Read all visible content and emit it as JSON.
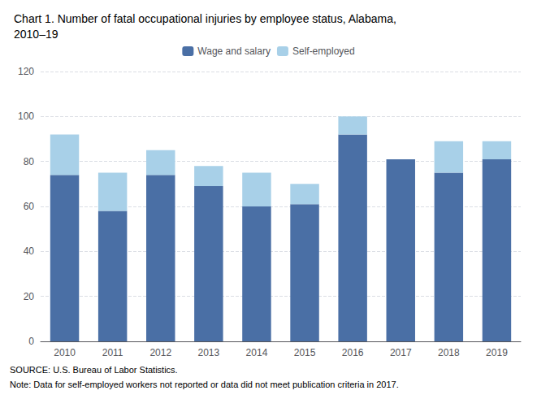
{
  "chart_data": {
    "type": "bar",
    "title": "Chart 1. Number of fatal occupational injuries by employee status, Alabama,\n2010–19",
    "categories": [
      "2010",
      "2011",
      "2012",
      "2013",
      "2014",
      "2015",
      "2016",
      "2017",
      "2018",
      "2019"
    ],
    "series": [
      {
        "name": "Wage and salary",
        "color": "#4a6fa5",
        "values": [
          74,
          58,
          74,
          69,
          60,
          61,
          92,
          81,
          75,
          81
        ]
      },
      {
        "name": "Self-employed",
        "color": "#a8d0e8",
        "values": [
          18,
          17,
          11,
          9,
          15,
          9,
          8,
          0,
          14,
          8
        ]
      }
    ],
    "stacked": true,
    "ylim": [
      0,
      120
    ],
    "yticks": [
      0,
      20,
      40,
      60,
      80,
      100,
      120
    ],
    "grid": true,
    "legend": "top",
    "annotations": [
      "SOURCE: U.S. Bureau of Labor Statistics.",
      "Note: Data for self-employed workers not reported or data did not meet publication criteria in 2017."
    ]
  }
}
